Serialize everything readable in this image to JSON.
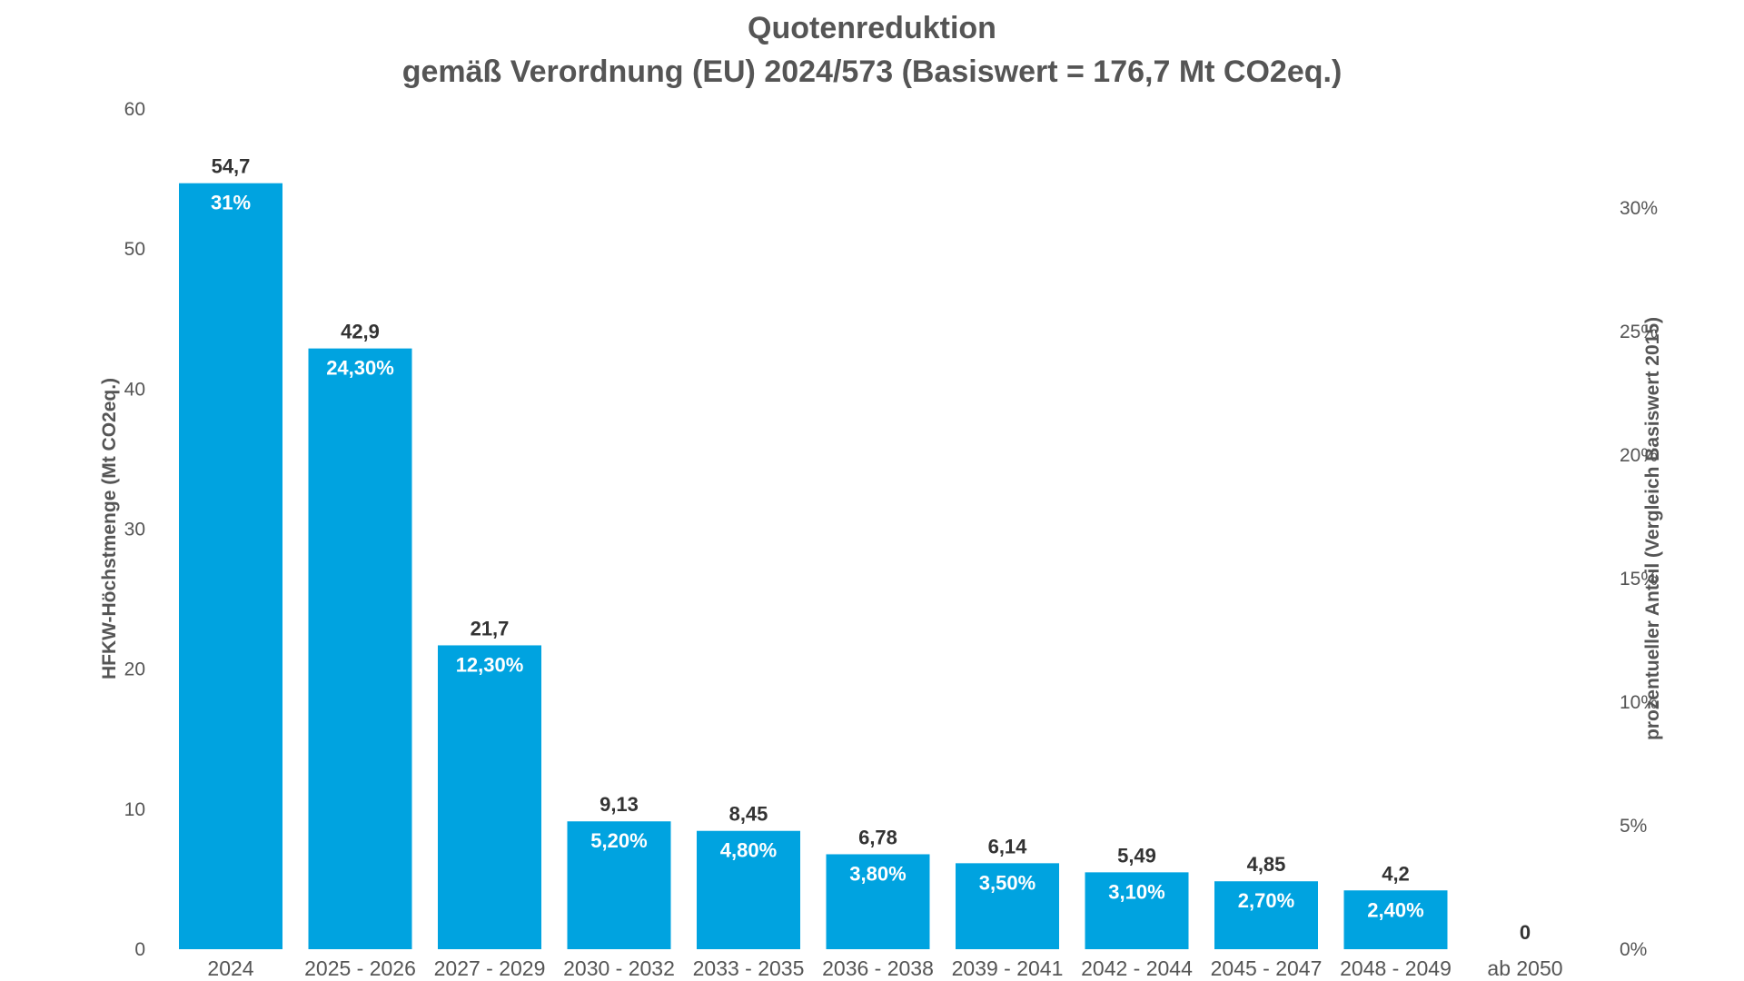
{
  "chart_data": {
    "type": "bar",
    "title": "Quotenreduktion",
    "subtitle": "gemäß Verordnung (EU) 2024/573 (Basiswert = 176,7 Mt CO2eq.)",
    "ylabel": "HFKW-Höchstmenge (Mt CO2eq.)",
    "y2label": "prozentueller Anteil (Vergleich Basiswert 2015)",
    "ylim": [
      0,
      60
    ],
    "y_ticks": [
      "0",
      "10",
      "20",
      "30",
      "40",
      "50",
      "60"
    ],
    "y2lim": [
      0,
      0.34
    ],
    "y2_ticks": [
      "0%",
      "5%",
      "10%",
      "15%",
      "20%",
      "25%",
      "30%"
    ],
    "grid": false,
    "bar_color": "#00A3E0",
    "categories": [
      "2024",
      "2025 - 2026",
      "2027 - 2029",
      "2030 - 2032",
      "2033 - 2035",
      "2036 - 2038",
      "2039 - 2041",
      "2042 - 2044",
      "2045 - 2047",
      "2048 - 2049",
      "ab 2050"
    ],
    "values": [
      54.7,
      42.9,
      21.7,
      9.13,
      8.45,
      6.78,
      6.14,
      5.49,
      4.85,
      4.2,
      0
    ],
    "value_labels": [
      "54,7",
      "42,9",
      "21,7",
      "9,13",
      "8,45",
      "6,78",
      "6,14",
      "5,49",
      "4,85",
      "4,2",
      "0"
    ],
    "percent_labels": [
      "31%",
      "24,30%",
      "12,30%",
      "5,20%",
      "4,80%",
      "3,80%",
      "3,50%",
      "3,10%",
      "2,70%",
      "2,40%",
      ""
    ]
  }
}
